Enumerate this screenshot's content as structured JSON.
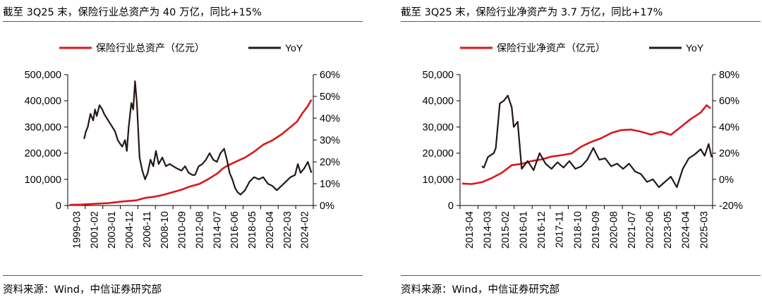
{
  "colors": {
    "asset_line": "#d7191c",
    "yoy_line": "#231815",
    "rule": "#b8332f"
  },
  "chart_data": [
    {
      "type": "line",
      "title": "截至 3Q25 末，保险行业总资产为 40 万亿，同比+15%",
      "source": "资料来源：Wind，中信证券研究部",
      "legend": {
        "placement": "top",
        "series1": "保险行业总资产（亿元）",
        "series2": "YoY"
      },
      "x_tick_labels": [
        "1999-03",
        "2001-02",
        "2003-01",
        "2004-12",
        "2006-11",
        "2008-10",
        "2010-09",
        "2012-08",
        "2014-07",
        "2016-06",
        "2018-05",
        "2020-04",
        "2022-03",
        "2024-02"
      ],
      "x_range": [
        1999.0,
        2026.0
      ],
      "y_left": {
        "range": [
          0,
          500000
        ],
        "tick_values": [
          0,
          100000,
          200000,
          300000,
          400000,
          500000
        ],
        "tick_labels": [
          "0",
          "100,000",
          "200,000",
          "300,000",
          "400,000",
          "500,000"
        ]
      },
      "y_right": {
        "range": [
          0,
          60
        ],
        "tick_values": [
          0,
          10,
          20,
          30,
          40,
          50,
          60
        ],
        "tick_labels": [
          "0%",
          "10%",
          "20%",
          "30%",
          "40%",
          "50%",
          "60%"
        ]
      },
      "series": [
        {
          "name": "保险行业总资产（亿元）",
          "axis": "left",
          "color_key": "asset_line",
          "points": [
            [
              1999.2,
              2600
            ],
            [
              2000.5,
              3400
            ],
            [
              2002.0,
              6500
            ],
            [
              2003.5,
              9100
            ],
            [
              2005.0,
              15200
            ],
            [
              2006.5,
              19700
            ],
            [
              2007.5,
              29000
            ],
            [
              2008.5,
              33400
            ],
            [
              2009.5,
              40600
            ],
            [
              2010.5,
              50500
            ],
            [
              2011.5,
              60100
            ],
            [
              2012.5,
              73500
            ],
            [
              2013.5,
              82900
            ],
            [
              2014.5,
              101600
            ],
            [
              2015.5,
              123600
            ],
            [
              2016.0,
              140000
            ],
            [
              2016.5,
              151200
            ],
            [
              2017.5,
              167500
            ],
            [
              2018.5,
              183300
            ],
            [
              2019.5,
              205600
            ],
            [
              2020.5,
              232300
            ],
            [
              2021.5,
              248900
            ],
            [
              2022.5,
              271500
            ],
            [
              2023.5,
              299600
            ],
            [
              2024.2,
              320000
            ],
            [
              2024.8,
              352000
            ],
            [
              2025.4,
              380000
            ],
            [
              2025.8,
              404000
            ]
          ]
        },
        {
          "name": "YoY",
          "axis": "right",
          "color_key": "yoy_line",
          "points": [
            [
              2000.8,
              30.5
            ],
            [
              2001.0,
              34
            ],
            [
              2001.2,
              36
            ],
            [
              2001.5,
              42
            ],
            [
              2001.8,
              39
            ],
            [
              2002.0,
              44
            ],
            [
              2002.2,
              41
            ],
            [
              2002.5,
              46
            ],
            [
              2002.8,
              44
            ],
            [
              2003.0,
              42
            ],
            [
              2003.3,
              40
            ],
            [
              2003.6,
              38
            ],
            [
              2003.9,
              36
            ],
            [
              2004.2,
              34
            ],
            [
              2004.5,
              30
            ],
            [
              2004.8,
              28
            ],
            [
              2005.0,
              27
            ],
            [
              2005.3,
              30
            ],
            [
              2005.5,
              25
            ],
            [
              2005.7,
              36
            ],
            [
              2006.0,
              47
            ],
            [
              2006.2,
              44
            ],
            [
              2006.4,
              57
            ],
            [
              2006.6,
              47
            ],
            [
              2006.9,
              22
            ],
            [
              2007.2,
              16
            ],
            [
              2007.5,
              12
            ],
            [
              2007.8,
              15
            ],
            [
              2008.1,
              21
            ],
            [
              2008.4,
              18
            ],
            [
              2008.7,
              25
            ],
            [
              2009.0,
              19
            ],
            [
              2009.4,
              22
            ],
            [
              2009.8,
              18
            ],
            [
              2010.2,
              19
            ],
            [
              2010.6,
              18
            ],
            [
              2011.0,
              17
            ],
            [
              2011.5,
              16
            ],
            [
              2011.9,
              18
            ],
            [
              2012.3,
              15
            ],
            [
              2012.7,
              14
            ],
            [
              2013.0,
              14
            ],
            [
              2013.4,
              18
            ],
            [
              2013.8,
              19
            ],
            [
              2014.2,
              21
            ],
            [
              2014.6,
              24
            ],
            [
              2015.0,
              21
            ],
            [
              2015.4,
              20
            ],
            [
              2015.8,
              24
            ],
            [
              2016.2,
              26
            ],
            [
              2016.5,
              21
            ],
            [
              2016.8,
              15
            ],
            [
              2017.1,
              12
            ],
            [
              2017.4,
              8
            ],
            [
              2017.7,
              6
            ],
            [
              2018.0,
              5
            ],
            [
              2018.5,
              7
            ],
            [
              2019.0,
              11
            ],
            [
              2019.5,
              13
            ],
            [
              2020.0,
              12
            ],
            [
              2020.5,
              13
            ],
            [
              2021.0,
              10
            ],
            [
              2021.5,
              9
            ],
            [
              2022.0,
              7
            ],
            [
              2022.5,
              9
            ],
            [
              2023.0,
              11
            ],
            [
              2023.5,
              13
            ],
            [
              2024.0,
              14
            ],
            [
              2024.3,
              19
            ],
            [
              2024.6,
              15
            ],
            [
              2025.0,
              17
            ],
            [
              2025.4,
              20
            ],
            [
              2025.8,
              15
            ]
          ]
        }
      ]
    },
    {
      "type": "line",
      "title": "截至 3Q25 末，保险行业净资产为 3.7 万亿，同比+17%",
      "source": "资料来源：Wind，中信证券研究部",
      "legend": {
        "placement": "top",
        "series1": "保险行业净资产（亿元）",
        "series2": "YoY"
      },
      "x_tick_labels": [
        "2013-04",
        "2014-03",
        "2015-02",
        "2016-01",
        "2016-12",
        "2017-11",
        "2018-10",
        "2019-09",
        "2020-08",
        "2021-07",
        "2022-06",
        "2023-05",
        "2024-04",
        "2025-03"
      ],
      "x_range": [
        2013.2,
        2025.9
      ],
      "y_left": {
        "range": [
          0,
          50000
        ],
        "tick_values": [
          0,
          10000,
          20000,
          30000,
          40000,
          50000
        ],
        "tick_labels": [
          "0",
          "10,000",
          "20,000",
          "30,000",
          "40,000",
          "50,000"
        ]
      },
      "y_right": {
        "range": [
          -20,
          80
        ],
        "tick_values": [
          -20,
          0,
          20,
          40,
          60,
          80
        ],
        "tick_labels": [
          "-20%",
          "0%",
          "20%",
          "40%",
          "60%",
          "80%"
        ]
      },
      "series": [
        {
          "name": "保险行业净资产（亿元）",
          "axis": "left",
          "color_key": "asset_line",
          "points": [
            [
              2013.3,
              8400
            ],
            [
              2013.8,
              8200
            ],
            [
              2014.3,
              8900
            ],
            [
              2014.8,
              10500
            ],
            [
              2015.3,
              12500
            ],
            [
              2015.8,
              15400
            ],
            [
              2016.3,
              15900
            ],
            [
              2016.8,
              17000
            ],
            [
              2017.3,
              17600
            ],
            [
              2017.8,
              18700
            ],
            [
              2018.3,
              19200
            ],
            [
              2018.8,
              19900
            ],
            [
              2019.3,
              22500
            ],
            [
              2019.8,
              24300
            ],
            [
              2020.3,
              25700
            ],
            [
              2020.8,
              27700
            ],
            [
              2021.3,
              28800
            ],
            [
              2021.8,
              29000
            ],
            [
              2022.3,
              28200
            ],
            [
              2022.8,
              27100
            ],
            [
              2023.3,
              28200
            ],
            [
              2023.8,
              27000
            ],
            [
              2024.3,
              30000
            ],
            [
              2024.8,
              33000
            ],
            [
              2025.3,
              35500
            ],
            [
              2025.6,
              38300
            ],
            [
              2025.8,
              37100
            ]
          ]
        },
        {
          "name": "YoY",
          "axis": "right",
          "color_key": "yoy_line",
          "points": [
            [
              2014.3,
              10
            ],
            [
              2014.4,
              9
            ],
            [
              2014.6,
              17
            ],
            [
              2014.9,
              20
            ],
            [
              2015.0,
              24
            ],
            [
              2015.2,
              58
            ],
            [
              2015.4,
              60
            ],
            [
              2015.6,
              64
            ],
            [
              2015.8,
              55
            ],
            [
              2015.9,
              40
            ],
            [
              2016.1,
              44
            ],
            [
              2016.3,
              8
            ],
            [
              2016.6,
              14
            ],
            [
              2016.9,
              7
            ],
            [
              2017.2,
              20
            ],
            [
              2017.5,
              12
            ],
            [
              2017.8,
              8
            ],
            [
              2018.1,
              13
            ],
            [
              2018.4,
              9
            ],
            [
              2018.7,
              14
            ],
            [
              2019.0,
              8
            ],
            [
              2019.3,
              10
            ],
            [
              2019.6,
              15
            ],
            [
              2019.9,
              24
            ],
            [
              2020.2,
              15
            ],
            [
              2020.5,
              16
            ],
            [
              2020.8,
              10
            ],
            [
              2021.1,
              12
            ],
            [
              2021.4,
              8
            ],
            [
              2021.7,
              12
            ],
            [
              2022.0,
              6
            ],
            [
              2022.3,
              4
            ],
            [
              2022.6,
              -2
            ],
            [
              2022.9,
              0
            ],
            [
              2023.2,
              -6
            ],
            [
              2023.5,
              -2
            ],
            [
              2023.8,
              2
            ],
            [
              2024.1,
              -6
            ],
            [
              2024.4,
              8
            ],
            [
              2024.7,
              16
            ],
            [
              2025.0,
              19
            ],
            [
              2025.3,
              23
            ],
            [
              2025.5,
              18
            ],
            [
              2025.7,
              27
            ],
            [
              2025.85,
              17
            ]
          ]
        }
      ]
    }
  ]
}
